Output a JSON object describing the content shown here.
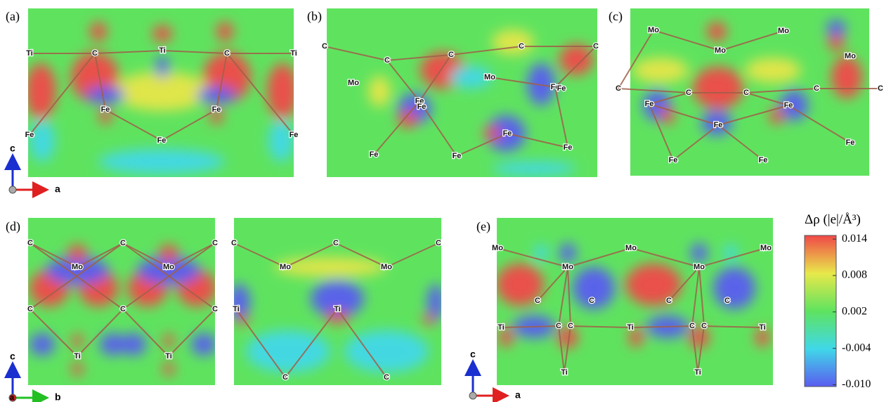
{
  "panels": [
    {
      "label": "(a)",
      "atoms": [
        "Ti",
        "C",
        "Ti",
        "C",
        "Ti",
        "Fe",
        "Fe",
        "Fe",
        "Fe",
        "Fe"
      ]
    },
    {
      "label": "(b)",
      "atoms": [
        "C",
        "C",
        "C",
        "C",
        "C",
        "Mo",
        "Mo",
        "Fe",
        "Fe",
        "Fe",
        "Fe",
        "Fe",
        "Fe",
        "Fe",
        "Fe"
      ]
    },
    {
      "label": "(c)",
      "atoms": [
        "Mo",
        "Mo",
        "Mo",
        "Mo",
        "C",
        "C",
        "C",
        "C",
        "C",
        "Fe",
        "Fe",
        "Fe",
        "Fe",
        "Fe",
        "Fe"
      ]
    },
    {
      "label": "(d)",
      "atoms": [
        "C",
        "C",
        "C",
        "Mo",
        "Mo",
        "C",
        "C",
        "C",
        "Ti",
        "Ti",
        "C",
        "C",
        "C",
        "Mo",
        "Mo",
        "Ti",
        "Ti",
        "C",
        "C"
      ]
    },
    {
      "label": "(e)",
      "atoms": [
        "Mo",
        "Mo",
        "Mo",
        "Mo",
        "Mo",
        "C",
        "C",
        "C",
        "C",
        "Ti",
        "C",
        "C",
        "Ti",
        "C",
        "C",
        "Ti",
        "Ti",
        "Ti"
      ]
    }
  ],
  "axes": [
    {
      "vertical": "c",
      "horizontal": "a"
    },
    {
      "vertical": "c",
      "horizontal": "b",
      "normal": "a"
    },
    {
      "vertical": "c",
      "horizontal": "a"
    }
  ],
  "colorbar": {
    "title": "Δρ (|e|/Å³)",
    "lim": [
      -0.0103,
      0.0146
    ],
    "ticks": [
      0.014,
      0.008,
      0.002,
      -0.004,
      {
        "value": -0.01,
        "label": "-0.010"
      }
    ]
  }
}
